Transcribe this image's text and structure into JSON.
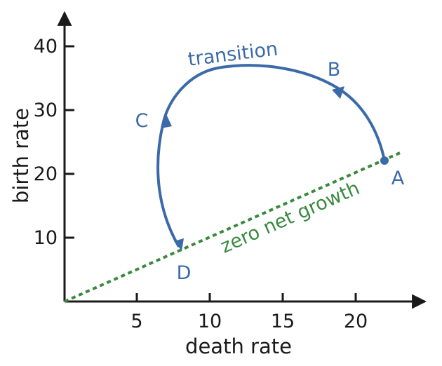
{
  "axes": {
    "x_label": "death rate",
    "y_label": "birth rate",
    "x_ticks": [
      "5",
      "10",
      "15",
      "20"
    ],
    "y_ticks": [
      "10",
      "20",
      "30",
      "40"
    ]
  },
  "curves": {
    "transition_label": "transition",
    "zero_growth_label": "zero net growth"
  },
  "points": {
    "a": "A",
    "b": "B",
    "c": "C",
    "d": "D"
  },
  "colors": {
    "axis": "#1a1a1a",
    "transition": "#3b6aa8",
    "zero_growth": "#3a8a3e"
  }
}
